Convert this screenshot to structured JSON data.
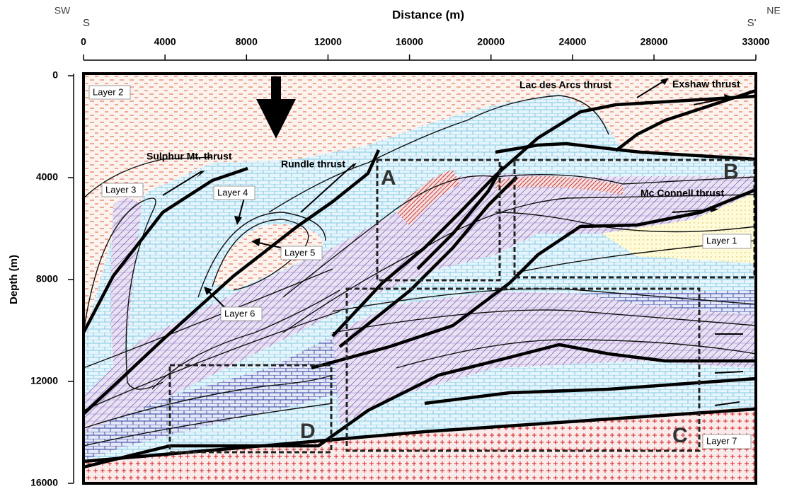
{
  "header": {
    "left_dir": "SW",
    "left_point": "S",
    "right_dir": "NE",
    "right_point": "S'"
  },
  "axes": {
    "xlabel": "Distance (m)",
    "ylabel": "Depth (m)",
    "xlim": [
      0,
      33000
    ],
    "xticks": [
      0,
      4000,
      8000,
      12000,
      16000,
      20000,
      24000,
      28000,
      33000
    ],
    "ylim": [
      0,
      16000
    ],
    "yticks": [
      0,
      4000,
      8000,
      12000,
      16000
    ]
  },
  "layers": [
    "Layer 1",
    "Layer 2",
    "Layer 3",
    "Layer 4",
    "Layer 5",
    "Layer 6",
    "Layer 7"
  ],
  "thrusts": [
    "Sulphur Mt. thrust",
    "Rundle thrust",
    "Lac des Arcs thrust",
    "Exshaw thrust",
    "Mc Connell thrust"
  ],
  "boxes": [
    "A",
    "B",
    "C",
    "D"
  ]
}
